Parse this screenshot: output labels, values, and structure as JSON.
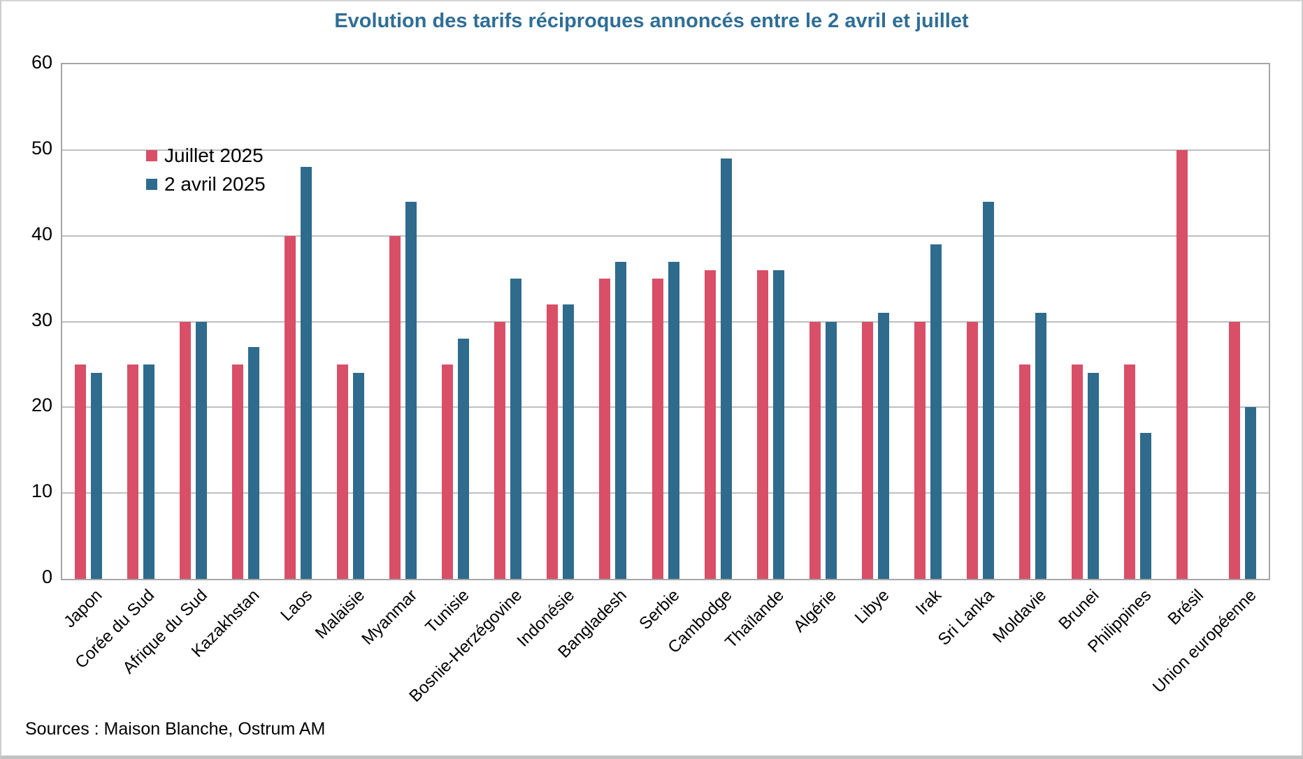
{
  "title": "Evolution des tarifs réciproques annoncés entre le 2 avril et juillet",
  "source": "Sources : Maison Blanche, Ostrum AM",
  "colors": {
    "title_text": "#2f6e95",
    "juillet_bar": "#d94f68",
    "avril_bar": "#2f6b8c",
    "gridline": "#bfbfbf",
    "plot_border": "#a6a6a6"
  },
  "chart_data": {
    "type": "bar",
    "title": "Evolution des tarifs réciproques annoncés entre le 2 avril et juillet",
    "categories": [
      "Japon",
      "Corée du Sud",
      "Afrique du Sud",
      "Kazakhstan",
      "Laos",
      "Malaisie",
      "Myanmar",
      "Tunisie",
      "Bosnie-Herzégovine",
      "Indonésie",
      "Bangladesh",
      "Serbie",
      "Cambodge",
      "Thaïlande",
      "Algérie",
      "Libye",
      "Irak",
      "Sri Lanka",
      "Moldavie",
      "Brunei",
      "Philippines",
      "Brésil",
      "Union européenne"
    ],
    "series": [
      {
        "name": "Juillet 2025",
        "color": "#d94f68",
        "values": [
          25,
          25,
          30,
          25,
          40,
          25,
          40,
          25,
          30,
          32,
          35,
          35,
          36,
          36,
          30,
          30,
          30,
          30,
          25,
          25,
          25,
          50,
          30
        ]
      },
      {
        "name": "2 avril 2025",
        "color": "#2f6b8c",
        "values": [
          24,
          25,
          30,
          27,
          48,
          24,
          44,
          28,
          35,
          32,
          37,
          37,
          49,
          36,
          30,
          31,
          39,
          44,
          31,
          24,
          17,
          null,
          20
        ]
      }
    ],
    "xlabel": "",
    "ylabel": "",
    "ylim": [
      0,
      60
    ],
    "ytick_step": 10,
    "grid": true,
    "legend_position": "top-left"
  }
}
